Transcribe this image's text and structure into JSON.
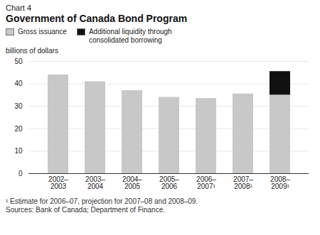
{
  "chart_data": {
    "type": "bar",
    "stacked": true,
    "chart_label": "Chart 4",
    "title": "Government of Canada Bond Program",
    "ylabel": "billions of dollars",
    "categories": [
      "2002–\n2003",
      "2003–\n2004",
      "2004–\n2005",
      "2005–\n2006",
      "2006–\n2007¹",
      "2007–\n2008¹",
      "2008–\n2009¹"
    ],
    "series": [
      {
        "name": "Gross issuance",
        "color": "#c8c8c8",
        "values": [
          44,
          41,
          37,
          34,
          33.5,
          35.5,
          35
        ]
      },
      {
        "name": "Additional liquidity through\nconsolidated borrowing",
        "color": "#111111",
        "values": [
          0,
          0,
          0,
          0,
          0,
          0,
          10.5
        ]
      }
    ],
    "ylim": [
      0,
      50
    ],
    "yticks": [
      0,
      10,
      20,
      30,
      40,
      50
    ],
    "grid": true,
    "legend": "top",
    "notes": [
      "¹ Estimate for 2006–07, projection for 2007–08 and 2008–09.",
      "Sources: Bank of Canada; Department of Finance."
    ]
  }
}
